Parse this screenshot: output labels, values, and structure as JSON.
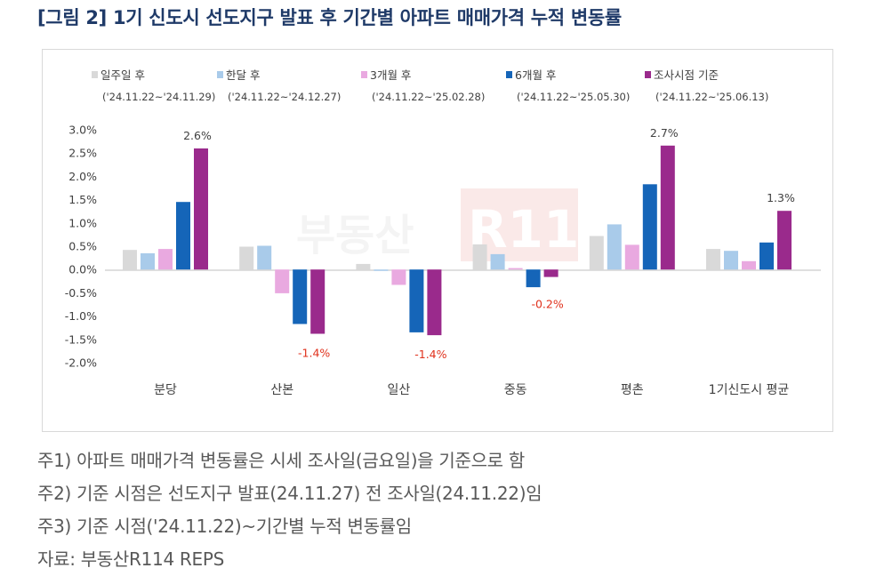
{
  "title": "[그림 2] 1기 신도시 선도지구 발표 후 기간별 아파트 매매가격 누적 변동률",
  "watermark": "부동산R114",
  "chart_data": {
    "type": "bar",
    "categories": [
      "분당",
      "산본",
      "일산",
      "중동",
      "평촌",
      "1기신도시 평균"
    ],
    "ylim": [
      -0.02,
      0.03
    ],
    "yticks": [
      0.03,
      0.025,
      0.02,
      0.015,
      0.01,
      0.005,
      0,
      -0.005,
      -0.01,
      -0.015,
      -0.02
    ],
    "ytick_labels": [
      "3.0%",
      "2.5%",
      "2.0%",
      "1.5%",
      "1.0%",
      "0.5%",
      "0.0%",
      "-0.5%",
      "-1.0%",
      "-1.5%",
      "-2.0%"
    ],
    "grid": false,
    "legend_position": "top",
    "series": [
      {
        "name": "일주일 후",
        "period": "('24.11.22~'24.11.29)",
        "color": "#d9d9d9",
        "values": [
          0.0042,
          0.0049,
          0.0012,
          0.0054,
          0.0072,
          0.0044
        ]
      },
      {
        "name": "한달 후",
        "period": "('24.11.22~'24.12.27)",
        "color": "#a9cbea",
        "values": [
          0.0035,
          0.0051,
          -0.0003,
          0.0033,
          0.0097,
          0.004
        ]
      },
      {
        "name": "3개월 후",
        "period": "('24.11.22~'25.02.28)",
        "color": "#e9a9e0",
        "values": [
          0.0044,
          -0.0051,
          -0.0033,
          0.0003,
          0.0053,
          0.0018
        ]
      },
      {
        "name": "6개월 후",
        "period": "('24.11.22~'25.05.30)",
        "color": "#1565b8",
        "values": [
          0.0145,
          -0.0117,
          -0.0135,
          -0.0038,
          0.0183,
          0.0058
        ]
      },
      {
        "name": "조사시점 기준",
        "period": "('24.11.22~'25.06.13)",
        "color": "#9a2a8c",
        "values": [
          0.026,
          -0.0138,
          -0.0141,
          -0.0016,
          0.0266,
          0.0126
        ]
      }
    ],
    "data_labels": [
      {
        "category": "분당",
        "series": "조사시점 기준",
        "text": "2.6%",
        "color": "#404040"
      },
      {
        "category": "산본",
        "series": "조사시점 기준",
        "text": "-1.4%",
        "color": "#e0311c"
      },
      {
        "category": "일산",
        "series": "조사시점 기준",
        "text": "-1.4%",
        "color": "#e0311c"
      },
      {
        "category": "중동",
        "series": "조사시점 기준",
        "text": "-0.2%",
        "color": "#e0311c"
      },
      {
        "category": "평촌",
        "series": "조사시점 기준",
        "text": "2.7%",
        "color": "#404040"
      },
      {
        "category": "1기신도시 평균",
        "series": "조사시점 기준",
        "text": "1.3%",
        "color": "#404040"
      }
    ]
  },
  "notes": [
    "주1) 아파트 매매가격 변동률은 시세 조사일(금요일)을 기준으로 함",
    "주2) 기준 시점은 선도지구 발표(24.11.27) 전 조사일(24.11.22)임",
    "주3) 기준 시점('24.11.22)~기간별 누적 변동률임",
    "자료: 부동산R114 REPS"
  ]
}
